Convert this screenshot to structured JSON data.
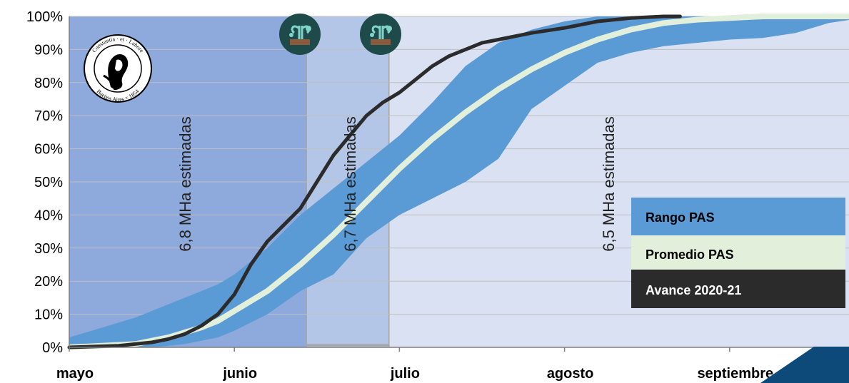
{
  "chart_data": {
    "type": "area",
    "y_axis": {
      "min": 0,
      "max": 100,
      "unit": "%",
      "ticks": [
        "0%",
        "10%",
        "20%",
        "30%",
        "40%",
        "50%",
        "60%",
        "70%",
        "80%",
        "90%",
        "100%"
      ]
    },
    "x_axis": {
      "categories": [
        "mayo",
        "junio",
        "julio",
        "agosto",
        "septiembre"
      ],
      "range_months": [
        0,
        5
      ]
    },
    "periods": [
      {
        "label": "6,8 MHa estimadas",
        "start": 0.0,
        "end": 1.44,
        "color": "#8EA9DB"
      },
      {
        "label": "6,7 MHa estimadas",
        "start": 1.44,
        "end": 1.94,
        "color": "#B4C6E7"
      },
      {
        "label": "6,5 MHa estimadas",
        "start": 1.94,
        "end": 5.0,
        "color": "#D9E1F2"
      }
    ],
    "series": [
      {
        "name": "Rango PAS",
        "color": "#5B9BD5",
        "x": [
          0.0,
          0.2,
          0.4,
          0.5,
          0.6,
          0.7,
          0.8,
          0.9,
          1.0,
          1.2,
          1.4,
          1.6,
          1.8,
          2.0,
          2.2,
          2.4,
          2.6,
          2.8,
          3.0,
          3.2,
          3.4,
          3.6,
          3.8,
          4.0,
          4.2,
          4.4,
          4.6,
          4.8,
          5.0
        ],
        "upper": [
          3,
          6,
          9,
          11,
          13,
          15,
          17,
          19,
          22,
          30,
          40,
          48,
          56,
          64,
          74,
          85,
          92,
          96,
          98.5,
          100,
          100,
          100,
          100,
          100,
          100,
          100,
          100,
          100,
          100
        ],
        "lower": [
          0,
          0,
          0,
          0,
          0.5,
          1,
          2,
          3,
          5,
          10,
          17,
          22,
          33,
          40,
          45,
          50,
          57,
          72,
          79,
          86,
          89,
          91,
          92,
          93,
          93.5,
          95,
          98,
          99.5,
          100
        ]
      },
      {
        "name": "Promedio PAS",
        "color": "#E2EFDA",
        "x": [
          0.0,
          0.2,
          0.4,
          0.5,
          0.6,
          0.7,
          0.8,
          0.9,
          1.0,
          1.2,
          1.4,
          1.6,
          1.8,
          2.0,
          2.2,
          2.4,
          2.6,
          2.8,
          3.0,
          3.2,
          3.4,
          3.6,
          3.8,
          4.0,
          4.2,
          4.4,
          4.6,
          4.8,
          5.0
        ],
        "values": [
          0,
          0.5,
          1,
          2,
          3,
          4.5,
          6,
          8,
          11,
          17,
          25,
          34,
          44,
          54,
          63,
          71,
          78,
          84,
          89,
          93,
          96,
          98,
          99,
          99.5,
          100,
          100,
          100,
          100,
          100
        ]
      },
      {
        "name": "Avance 2020-21",
        "color": "#2B2B2B",
        "x": [
          0.0,
          0.3,
          0.5,
          0.6,
          0.7,
          0.8,
          0.9,
          1.0,
          1.1,
          1.2,
          1.3,
          1.4,
          1.5,
          1.6,
          1.7,
          1.8,
          1.9,
          2.0,
          2.1,
          2.2,
          2.3,
          2.4,
          2.5,
          2.6,
          2.8,
          3.0,
          3.2,
          3.4,
          3.6,
          3.7
        ],
        "values": [
          0,
          0.5,
          1.5,
          2.5,
          4,
          6.5,
          10,
          16,
          25,
          32,
          37,
          42,
          50,
          58,
          64,
          70,
          74,
          77,
          81,
          85,
          88,
          90,
          92,
          93,
          95,
          96.5,
          98.5,
          99.5,
          100,
          100
        ]
      }
    ],
    "legend": {
      "position": "right",
      "entries": [
        {
          "label": "Rango PAS",
          "bg": "#5B9BD5",
          "fg": "#000000"
        },
        {
          "label": "Promedio PAS",
          "bg": "#E2EFDA",
          "fg": "#000000"
        },
        {
          "label": "Avance 2020-21",
          "bg": "#2B2B2B",
          "fg": "#FFFFFF"
        }
      ]
    },
    "grid": true,
    "icons": [
      "sprout-icon",
      "sprout-icon"
    ]
  },
  "logo": {
    "text_top": "Constantia · et · Labore",
    "text_bottom": "Buenos Aires × 1854"
  }
}
